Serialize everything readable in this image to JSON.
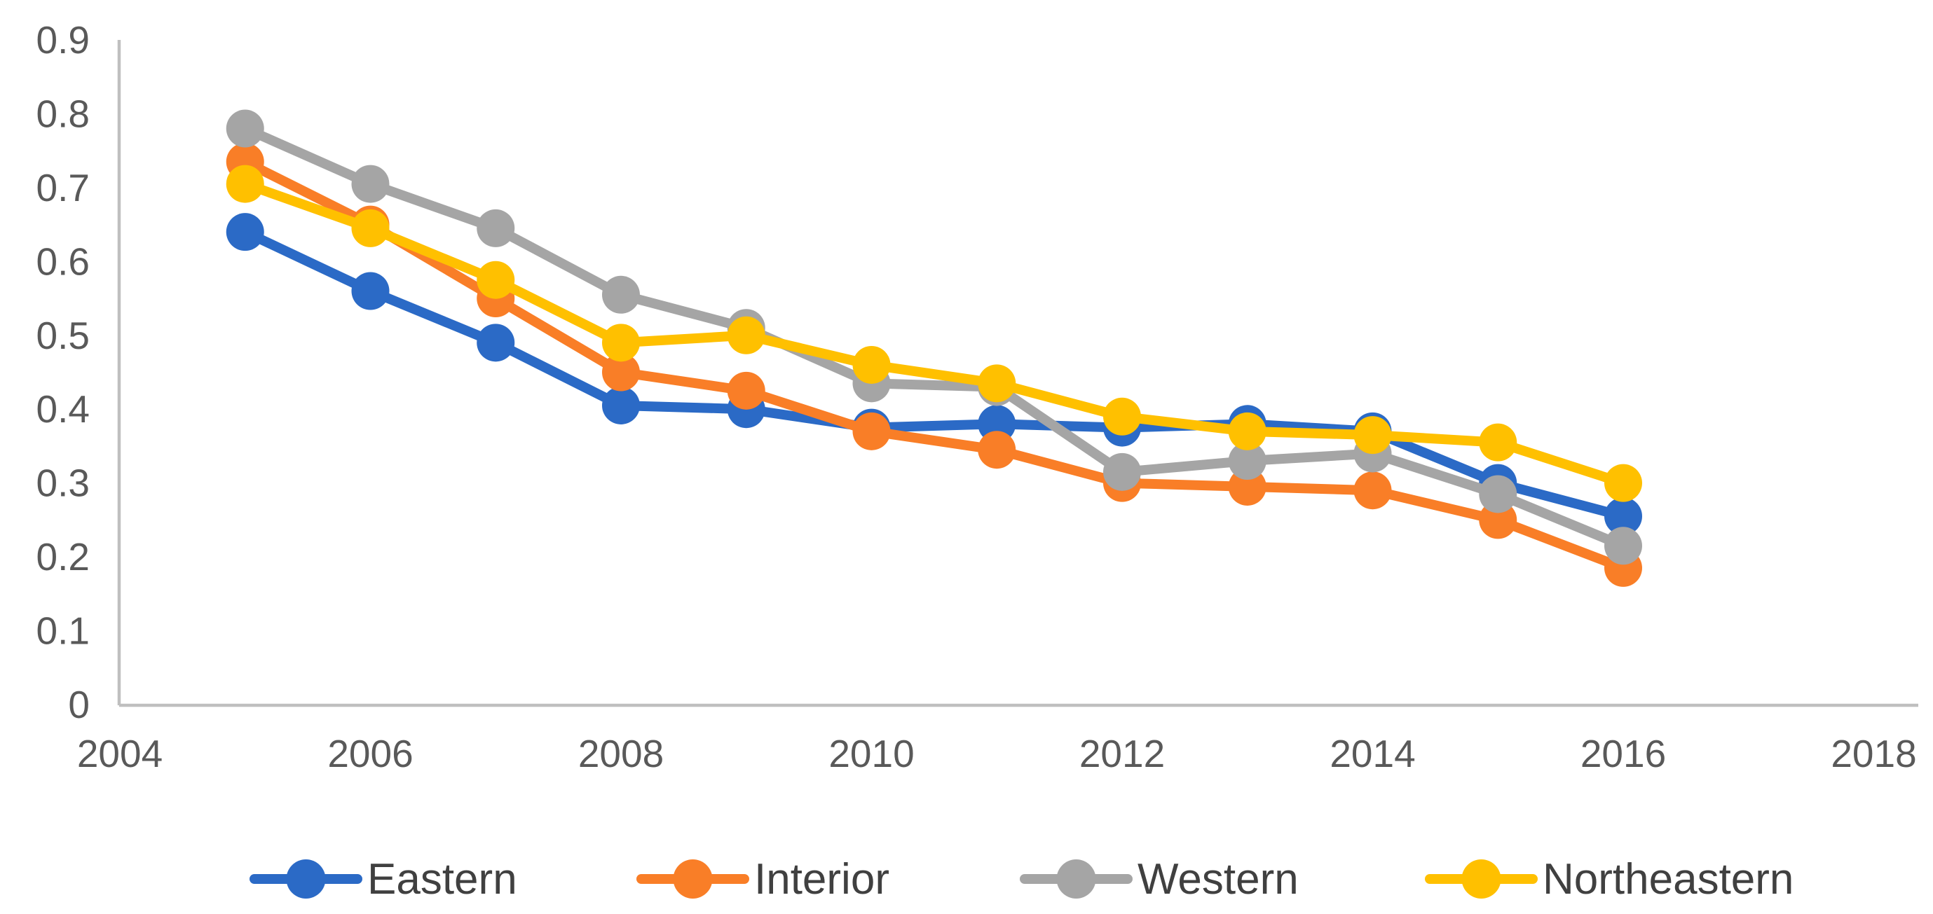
{
  "chart_data": {
    "type": "line",
    "title": "",
    "xlabel": "",
    "ylabel": "",
    "x": [
      2005,
      2006,
      2007,
      2008,
      2009,
      2010,
      2011,
      2012,
      2013,
      2014,
      2015,
      2016
    ],
    "series": [
      {
        "name": "Eastern",
        "color": "#2B6AC6",
        "values": [
          0.64,
          0.56,
          0.49,
          0.405,
          0.4,
          0.375,
          0.38,
          0.375,
          0.38,
          0.37,
          0.3,
          0.255
        ]
      },
      {
        "name": "Interior",
        "color": "#F97E27",
        "values": [
          0.735,
          0.65,
          0.55,
          0.45,
          0.425,
          0.37,
          0.345,
          0.3,
          0.295,
          0.29,
          0.25,
          0.185
        ]
      },
      {
        "name": "Western",
        "color": "#A5A5A5",
        "values": [
          0.78,
          0.705,
          0.645,
          0.555,
          0.51,
          0.435,
          0.43,
          0.315,
          0.33,
          0.34,
          0.285,
          0.215
        ]
      },
      {
        "name": "Northeastern",
        "color": "#FFC000",
        "values": [
          0.705,
          0.645,
          0.575,
          0.49,
          0.5,
          0.46,
          0.435,
          0.39,
          0.37,
          0.365,
          0.355,
          0.3
        ]
      }
    ],
    "x_axis": {
      "tick_labels": [
        "2004",
        "2006",
        "2008",
        "2010",
        "2012",
        "2014",
        "2016",
        "2018"
      ],
      "min": 2004,
      "max": 2018
    },
    "y_axis": {
      "tick_labels": [
        "0",
        "0.1",
        "0.2",
        "0.3",
        "0.4",
        "0.5",
        "0.6",
        "0.7",
        "0.8",
        "0.9"
      ],
      "min": 0,
      "max": 0.9
    },
    "legend": {
      "position": "bottom",
      "entries": [
        "Eastern",
        "Interior",
        "Western",
        "Northeastern"
      ]
    },
    "grid": false,
    "style": {
      "axis_color": "#BFBFBF",
      "tick_label_color": "#595959",
      "legend_label_color": "#404040",
      "background": "#FFFFFF"
    }
  }
}
